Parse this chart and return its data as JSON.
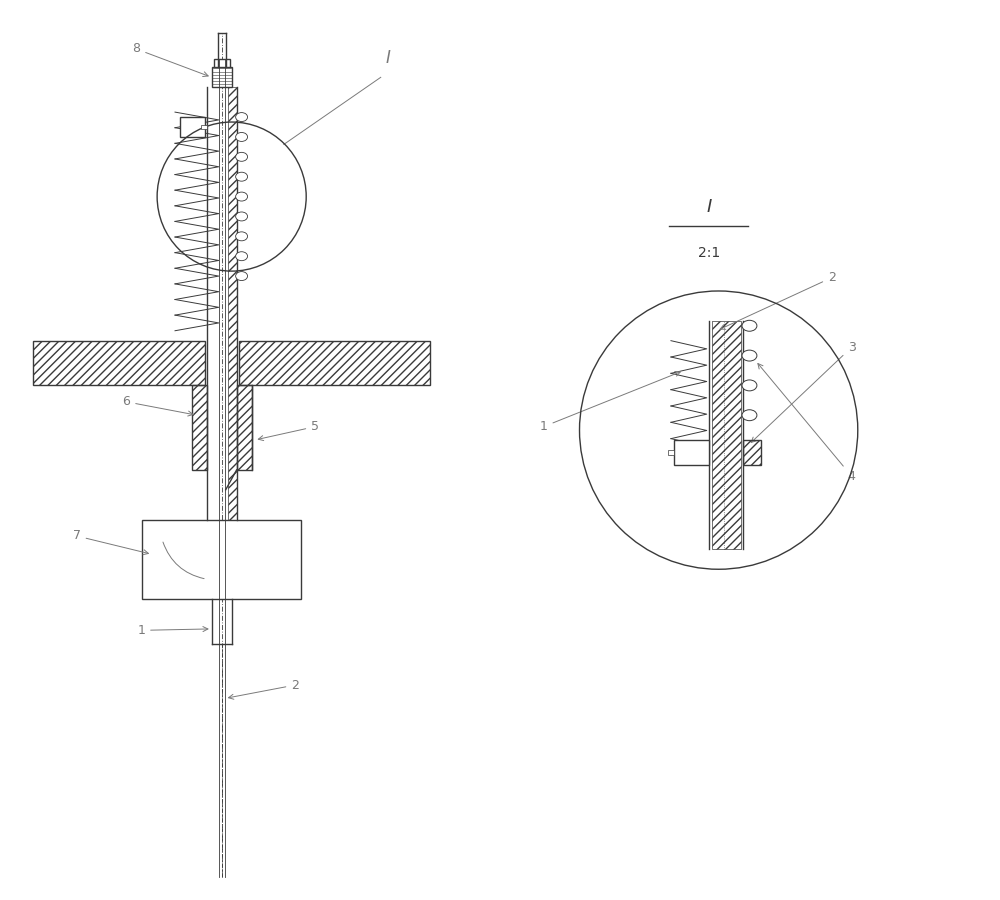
{
  "bg_color": "#ffffff",
  "lc": "#3a3a3a",
  "lc_light": "#7a7a7a",
  "figsize": [
    10.0,
    9.0
  ],
  "dpi": 100
}
